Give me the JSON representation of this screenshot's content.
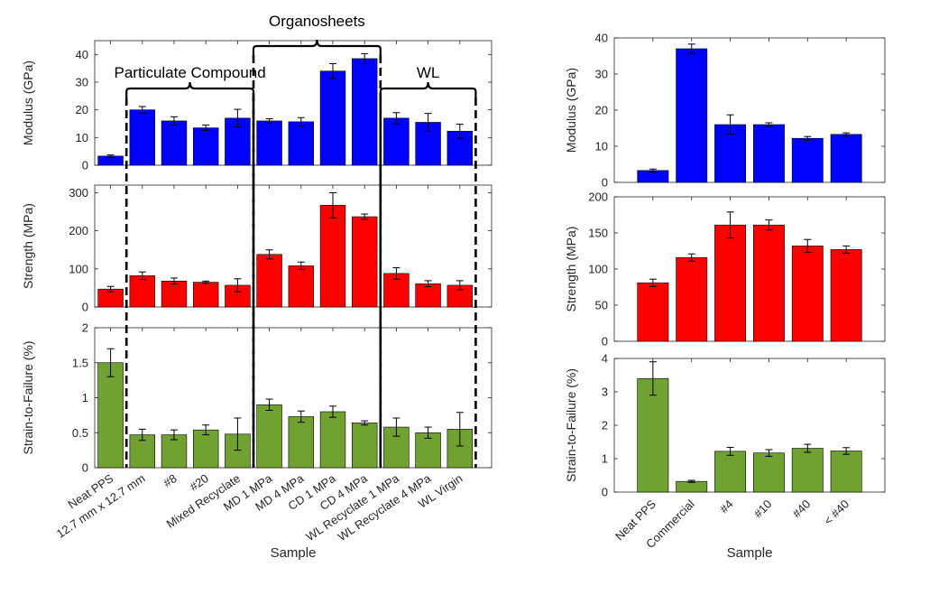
{
  "chart_data": [
    {
      "id": "left",
      "type": "bar",
      "categories": [
        "Neat PPS",
        "12.7 mm x 12.7 mm",
        "#8",
        "#20",
        "Mixed Recyclate",
        "MD 1 MPa",
        "MD 4 MPa",
        "CD 1 MPa",
        "CD 4 MPa",
        "WL Recyclate 1 MPa",
        "WL Recyclate 4 MPa",
        "WL Virgin"
      ],
      "xlabel": "Sample",
      "groups": [
        {
          "label": "Particulate Compound",
          "from": 1,
          "to": 4,
          "level": "low"
        },
        {
          "label": "Organosheets",
          "from": 5,
          "to": 8,
          "level": "high"
        },
        {
          "label": "WL",
          "from": 9,
          "to": 11,
          "level": "low"
        }
      ],
      "panels": [
        {
          "ylabel": "Modulus (GPa)",
          "ylim": [
            0,
            45
          ],
          "yticks": [
            0,
            10,
            20,
            30,
            40
          ],
          "color": "#0000FF",
          "values": [
            3.3,
            20,
            16,
            13.5,
            17,
            16,
            15.7,
            34,
            38.5,
            17,
            15.5,
            12.3
          ],
          "errors": [
            0.4,
            1.2,
            1.5,
            1.0,
            3.2,
            0.8,
            1.5,
            2.7,
            1.8,
            2.0,
            3.2,
            2.5
          ]
        },
        {
          "ylabel": "Strength (MPa)",
          "ylim": [
            0,
            320
          ],
          "yticks": [
            0,
            100,
            200,
            300
          ],
          "color": "#FF0000",
          "values": [
            47,
            82,
            68,
            65,
            57,
            138,
            108,
            267,
            237,
            88,
            61,
            57
          ],
          "errors": [
            7,
            10,
            8,
            3,
            17,
            12,
            10,
            33,
            7,
            15,
            8,
            12
          ]
        },
        {
          "ylabel": "Strain-to-Failure (%)",
          "ylim": [
            0,
            2
          ],
          "yticks": [
            0,
            0.5,
            1,
            1.5,
            2
          ],
          "color": "#70A132",
          "values": [
            1.5,
            0.47,
            0.47,
            0.54,
            0.48,
            0.9,
            0.73,
            0.8,
            0.64,
            0.58,
            0.5,
            0.55
          ],
          "errors": [
            0.2,
            0.08,
            0.07,
            0.07,
            0.23,
            0.08,
            0.08,
            0.08,
            0.03,
            0.13,
            0.08,
            0.24
          ]
        }
      ]
    },
    {
      "id": "right",
      "type": "bar",
      "categories": [
        "Neat PPS",
        "Commercial",
        "#4",
        "#10",
        "#40",
        "< #40"
      ],
      "xlabel": "Sample",
      "panels": [
        {
          "ylabel": "Modulus (GPa)",
          "ylim": [
            0,
            40
          ],
          "yticks": [
            0,
            10,
            20,
            30,
            40
          ],
          "color": "#0000FF",
          "values": [
            3.3,
            37,
            16,
            16,
            12.2,
            13.3
          ],
          "errors": [
            0.4,
            1.3,
            2.7,
            0.5,
            0.5,
            0.4
          ]
        },
        {
          "ylabel": "Strength (MPa)",
          "ylim": [
            0,
            200
          ],
          "yticks": [
            0,
            50,
            100,
            150,
            200
          ],
          "color": "#FF0000",
          "values": [
            81,
            116,
            161,
            161,
            132,
            127
          ],
          "errors": [
            5,
            5,
            18,
            7,
            9,
            5
          ]
        },
        {
          "ylabel": "Strain-to-Failure (%)",
          "ylim": [
            0,
            4
          ],
          "yticks": [
            0,
            1,
            2,
            3,
            4
          ],
          "color": "#70A132",
          "values": [
            3.4,
            0.32,
            1.22,
            1.17,
            1.31,
            1.23
          ],
          "errors": [
            0.5,
            0.03,
            0.12,
            0.1,
            0.12,
            0.1
          ]
        }
      ]
    }
  ]
}
